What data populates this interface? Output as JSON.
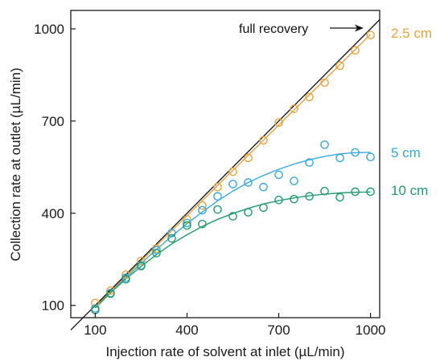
{
  "chart_data": {
    "type": "scatter",
    "xlabel": "Injection rate of solvent at inlet (µL/min)",
    "ylabel": "Collection rate at outlet (µL/min)",
    "xlim": [
      20,
      1030
    ],
    "ylim": [
      60,
      1060
    ],
    "x_ticks": [
      100,
      400,
      700,
      1000
    ],
    "y_ticks": [
      100,
      400,
      700,
      1000
    ],
    "x_tick_labels": [
      "100",
      "400",
      "700",
      "1000"
    ],
    "y_tick_labels": [
      "100",
      "400",
      "700",
      "1000"
    ],
    "grid": false,
    "reference_line": {
      "label": "full recovery",
      "x": [
        20,
        1030
      ],
      "y": [
        20,
        1030
      ],
      "color": "#111111"
    },
    "series": [
      {
        "name": "2.5 cm",
        "color": "#E8A33D",
        "x": [
          100,
          150,
          200,
          250,
          300,
          350,
          400,
          450,
          500,
          550,
          600,
          650,
          700,
          750,
          800,
          850,
          900,
          950,
          1000
        ],
        "y": [
          108,
          148,
          200,
          245,
          285,
          335,
          380,
          425,
          485,
          535,
          580,
          637,
          695,
          740,
          778,
          825,
          880,
          930,
          980
        ],
        "fit": {
          "x": [
            100,
            1000
          ],
          "y": [
            97,
            982
          ]
        }
      },
      {
        "name": "5 cm",
        "color": "#36A9DF",
        "x": [
          100,
          150,
          200,
          250,
          300,
          350,
          400,
          450,
          500,
          550,
          600,
          650,
          700,
          750,
          800,
          850,
          900,
          950,
          1000
        ],
        "y": [
          90,
          140,
          190,
          230,
          280,
          335,
          368,
          410,
          455,
          495,
          500,
          485,
          525,
          505,
          565,
          623,
          580,
          598,
          583
        ],
        "fit": {
          "x": [
            100,
            150,
            200,
            250,
            300,
            350,
            400,
            450,
            500,
            550,
            600,
            650,
            700,
            750,
            800,
            850,
            900,
            950,
            1000
          ],
          "y": [
            92,
            142,
            190,
            237,
            282,
            325,
            366,
            404,
            440,
            472,
            500,
            523,
            543,
            560,
            574,
            585,
            593,
            597,
            598
          ]
        }
      },
      {
        "name": "10 cm",
        "color": "#1E9C6B",
        "x": [
          100,
          150,
          200,
          250,
          300,
          350,
          400,
          450,
          500,
          550,
          600,
          650,
          700,
          750,
          800,
          850,
          900,
          950,
          1000
        ],
        "y": [
          85,
          138,
          185,
          228,
          270,
          318,
          360,
          365,
          412,
          390,
          403,
          418,
          443,
          446,
          455,
          472,
          452,
          470,
          470
        ],
        "fit": {
          "x": [
            100,
            150,
            200,
            250,
            300,
            350,
            400,
            450,
            500,
            550,
            600,
            650,
            700,
            750,
            800,
            850,
            900,
            950,
            1000
          ],
          "y": [
            92,
            141,
            186,
            227,
            265,
            300,
            330,
            357,
            380,
            399,
            416,
            430,
            441,
            450,
            457,
            462,
            466,
            468,
            469
          ]
        }
      }
    ]
  },
  "annotations": {
    "full_recovery": "full recovery"
  }
}
